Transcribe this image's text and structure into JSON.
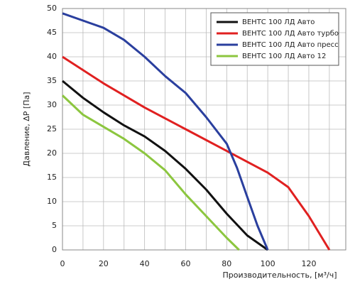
{
  "chart_data": {
    "type": "line",
    "xlabel": "Производительность, [м³/ч]",
    "ylabel": "Давление, ΔP [Па]",
    "xlim": [
      0,
      138
    ],
    "ylim": [
      0,
      50
    ],
    "xticks": [
      0,
      20,
      40,
      60,
      80,
      100,
      120
    ],
    "xminor": [
      10,
      30,
      50,
      70,
      90,
      110,
      130
    ],
    "yticks": [
      0,
      5,
      10,
      15,
      20,
      25,
      30,
      35,
      40,
      45,
      50
    ],
    "grid": true,
    "legend": "upper right",
    "series": [
      {
        "name": "ВЕНТС 100 ЛД Авто",
        "color": "#111111",
        "x": [
          0,
          10,
          20,
          30,
          40,
          50,
          60,
          70,
          80,
          90,
          100
        ],
        "values": [
          35,
          31.5,
          28.5,
          25.8,
          23.5,
          20.5,
          16.8,
          12.5,
          7.5,
          3,
          0
        ]
      },
      {
        "name": "ВЕНТС 100 ЛД Авто турбо",
        "color": "#e02020",
        "x": [
          0,
          20,
          40,
          60,
          80,
          100,
          110,
          120,
          130
        ],
        "values": [
          40,
          34.5,
          29.5,
          25,
          20.5,
          16,
          13,
          7,
          0
        ]
      },
      {
        "name": "ВЕНТС 100 ЛД Авто пресс",
        "color": "#2a3f9e",
        "x": [
          0,
          10,
          20,
          30,
          40,
          50,
          60,
          70,
          80,
          85,
          90,
          95,
          100
        ],
        "values": [
          49,
          47.5,
          46,
          43.5,
          40,
          36,
          32.5,
          27.5,
          22,
          17,
          11,
          5,
          0
        ]
      },
      {
        "name": "ВЕНТС 100 ЛД Авто 12",
        "color": "#8cc63f",
        "x": [
          0,
          10,
          20,
          30,
          40,
          50,
          60,
          70,
          80,
          86
        ],
        "values": [
          32,
          28,
          25.5,
          23,
          20,
          16.5,
          11.5,
          7,
          2.5,
          0
        ]
      }
    ]
  }
}
